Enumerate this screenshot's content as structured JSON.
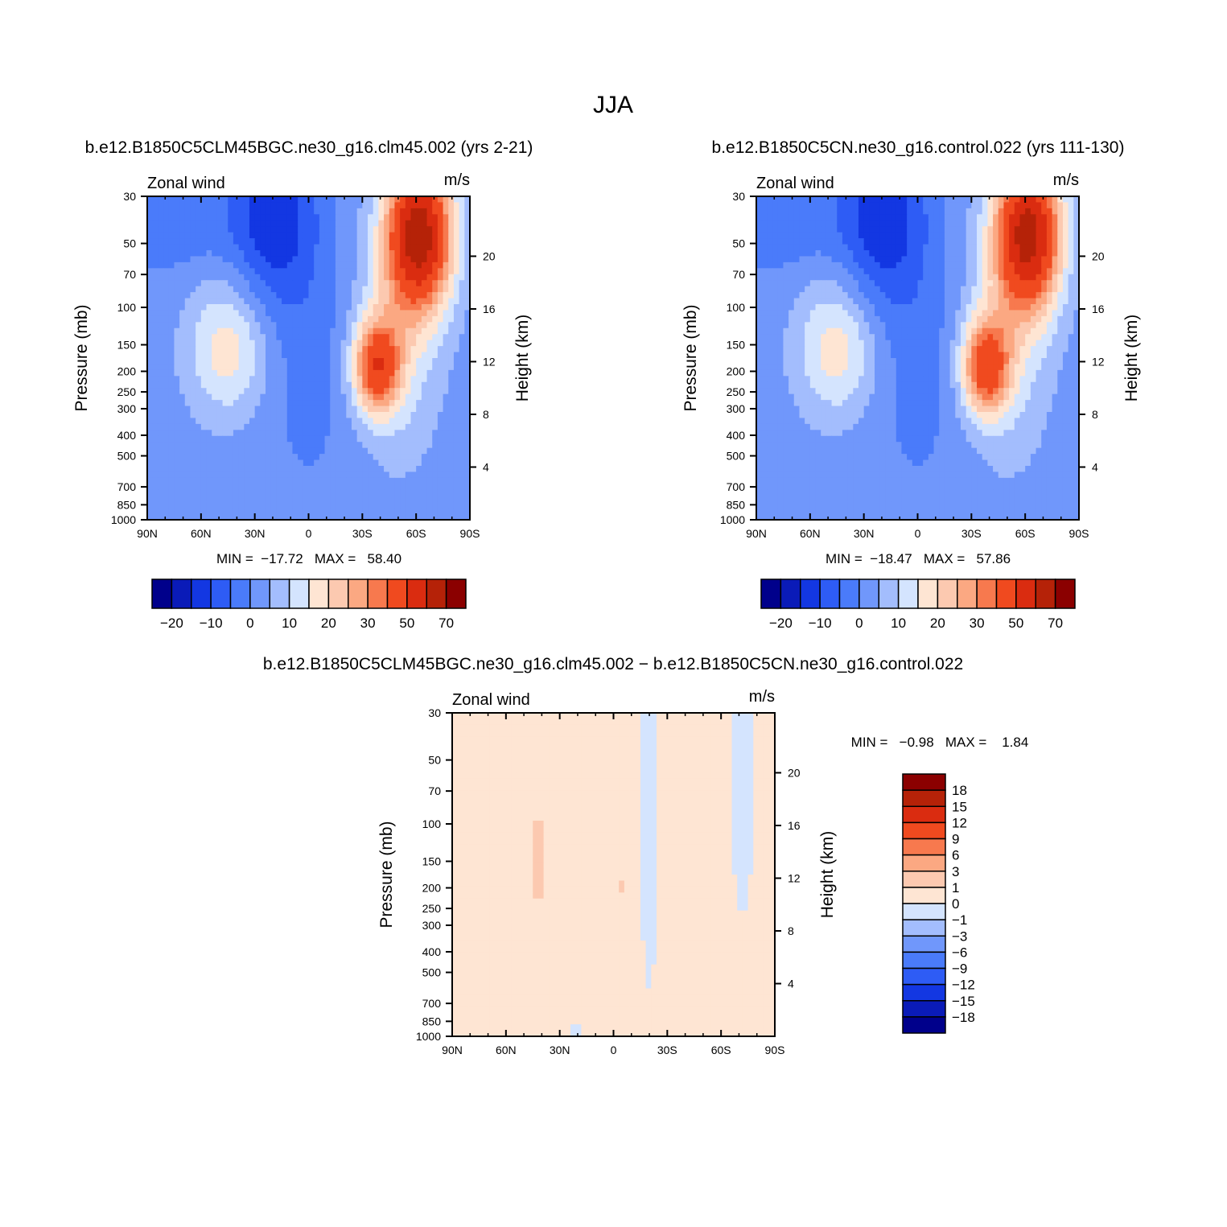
{
  "figure": {
    "title": "JJA"
  },
  "colors": {
    "levels": [
      "#00008b",
      "#0a1bb8",
      "#1337e2",
      "#2e5cf5",
      "#4a7bfa",
      "#7097fb",
      "#a3bdfd",
      "#d4e4fe",
      "#fee5d3",
      "#fcc9b0",
      "#fba882",
      "#f7794e",
      "#f04a1f",
      "#da2c10",
      "#b52208",
      "#8b0000"
    ]
  },
  "chart_data": [
    {
      "id": "case1",
      "type": "heatmap",
      "case_title": "b.e12.B1850C5CLM45BGC.ne30_g16.clm45.002 (yrs 2-21)",
      "variable_label": "Zonal wind",
      "units_label": "m/s",
      "ylabel": "Pressure (mb)",
      "y2label": "Height (km)",
      "x_ticks": [
        "90N",
        "60N",
        "30N",
        "0",
        "30S",
        "60S",
        "90S"
      ],
      "x_lat": [
        90,
        60,
        30,
        0,
        -30,
        -60,
        -90
      ],
      "y_ticks": [
        "30",
        "50",
        "70",
        "100",
        "150",
        "200",
        "250",
        "300",
        "400",
        "500",
        "700",
        "850",
        "1000"
      ],
      "y_values": [
        30,
        50,
        70,
        100,
        150,
        200,
        250,
        300,
        400,
        500,
        700,
        850,
        1000
      ],
      "y2_ticks": [
        "20",
        "16",
        "12",
        "8",
        "4"
      ],
      "y2_values": [
        20,
        16,
        12,
        8,
        4
      ],
      "min_text": "MIN =  −17.72   MAX =   58.40",
      "min": -17.72,
      "max": 58.4,
      "colorbar_ticks": [
        "−20",
        "−10",
        "0",
        "10",
        "20",
        "30",
        "50",
        "70"
      ],
      "contour_levels": [
        -25,
        -20,
        -15,
        -10,
        -5,
        0,
        5,
        10,
        15,
        20,
        25,
        30,
        40,
        50,
        60,
        70
      ]
    },
    {
      "id": "case2",
      "type": "heatmap",
      "case_title": "b.e12.B1850C5CN.ne30_g16.control.022 (yrs 111-130)",
      "variable_label": "Zonal wind",
      "units_label": "m/s",
      "ylabel": "Pressure (mb)",
      "y2label": "Height (km)",
      "x_ticks": [
        "90N",
        "60N",
        "30N",
        "0",
        "30S",
        "60S",
        "90S"
      ],
      "x_lat": [
        90,
        60,
        30,
        0,
        -30,
        -60,
        -90
      ],
      "y_ticks": [
        "30",
        "50",
        "70",
        "100",
        "150",
        "200",
        "250",
        "300",
        "400",
        "500",
        "700",
        "850",
        "1000"
      ],
      "y_values": [
        30,
        50,
        70,
        100,
        150,
        200,
        250,
        300,
        400,
        500,
        700,
        850,
        1000
      ],
      "y2_ticks": [
        "20",
        "16",
        "12",
        "8",
        "4"
      ],
      "y2_values": [
        20,
        16,
        12,
        8,
        4
      ],
      "min_text": "MIN =  −18.47   MAX =   57.86",
      "min": -18.47,
      "max": 57.86,
      "colorbar_ticks": [
        "−20",
        "−10",
        "0",
        "10",
        "20",
        "30",
        "50",
        "70"
      ],
      "contour_levels": [
        -25,
        -20,
        -15,
        -10,
        -5,
        0,
        5,
        10,
        15,
        20,
        25,
        30,
        40,
        50,
        60,
        70
      ]
    },
    {
      "id": "diff",
      "type": "heatmap",
      "case_title": "b.e12.B1850C5CLM45BGC.ne30_g16.clm45.002 − b.e12.B1850C5CN.ne30_g16.control.022",
      "variable_label": "Zonal wind",
      "units_label": "m/s",
      "ylabel": "Pressure (mb)",
      "y2label": "Height (km)",
      "x_ticks": [
        "90N",
        "60N",
        "30N",
        "0",
        "30S",
        "60S",
        "90S"
      ],
      "x_lat": [
        90,
        60,
        30,
        0,
        -30,
        -60,
        -90
      ],
      "y_ticks": [
        "30",
        "50",
        "70",
        "100",
        "150",
        "200",
        "250",
        "300",
        "400",
        "500",
        "700",
        "850",
        "1000"
      ],
      "y_values": [
        30,
        50,
        70,
        100,
        150,
        200,
        250,
        300,
        400,
        500,
        700,
        850,
        1000
      ],
      "y2_ticks": [
        "20",
        "16",
        "12",
        "8",
        "4"
      ],
      "y2_values": [
        20,
        16,
        12,
        8,
        4
      ],
      "min_text": "MIN =   −0.98   MAX =    1.84",
      "min": -0.98,
      "max": 1.84,
      "colorbar_ticks": [
        "18",
        "15",
        "12",
        "9",
        "6",
        "3",
        "1",
        "0",
        "−1",
        "−3",
        "−6",
        "−9",
        "−12",
        "−15",
        "−18"
      ],
      "contour_levels": [
        -18,
        -15,
        -12,
        -9,
        -6,
        -3,
        -1,
        0,
        1,
        3,
        6,
        9,
        12,
        15,
        18
      ]
    }
  ]
}
